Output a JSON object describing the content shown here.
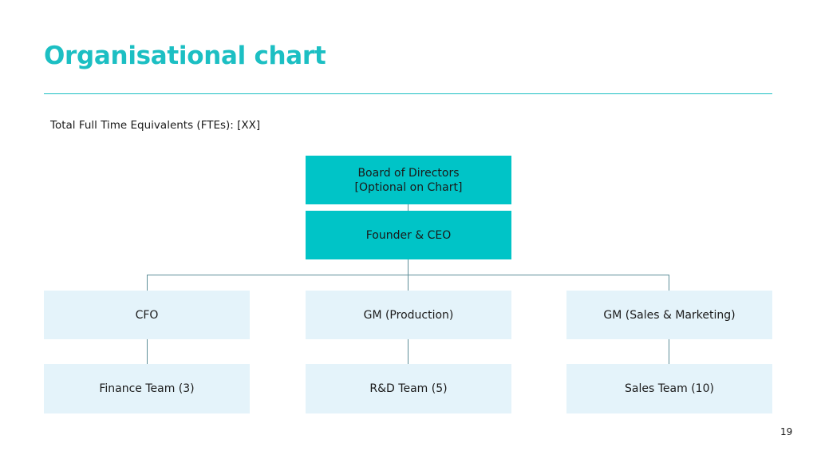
{
  "slide": {
    "title": "Organisational chart",
    "fte_text": "Total Full Time Equivalents (FTEs): [XX]",
    "page_number": "19"
  },
  "org": {
    "board": {
      "line1": "Board of Directors",
      "line2": "[Optional on Chart]"
    },
    "ceo": "Founder & CEO",
    "managers": [
      {
        "role": "CFO",
        "team": "Finance Team (3)"
      },
      {
        "role": "GM (Production)",
        "team": "R&D Team (5)"
      },
      {
        "role": "GM (Sales & Marketing)",
        "team": "Sales Team (10)"
      }
    ]
  },
  "colors": {
    "accent": "#1cbfc3",
    "top_box": "#00c4c7",
    "sub_box": "#e4f3fa",
    "connector": "#5e8f99"
  }
}
